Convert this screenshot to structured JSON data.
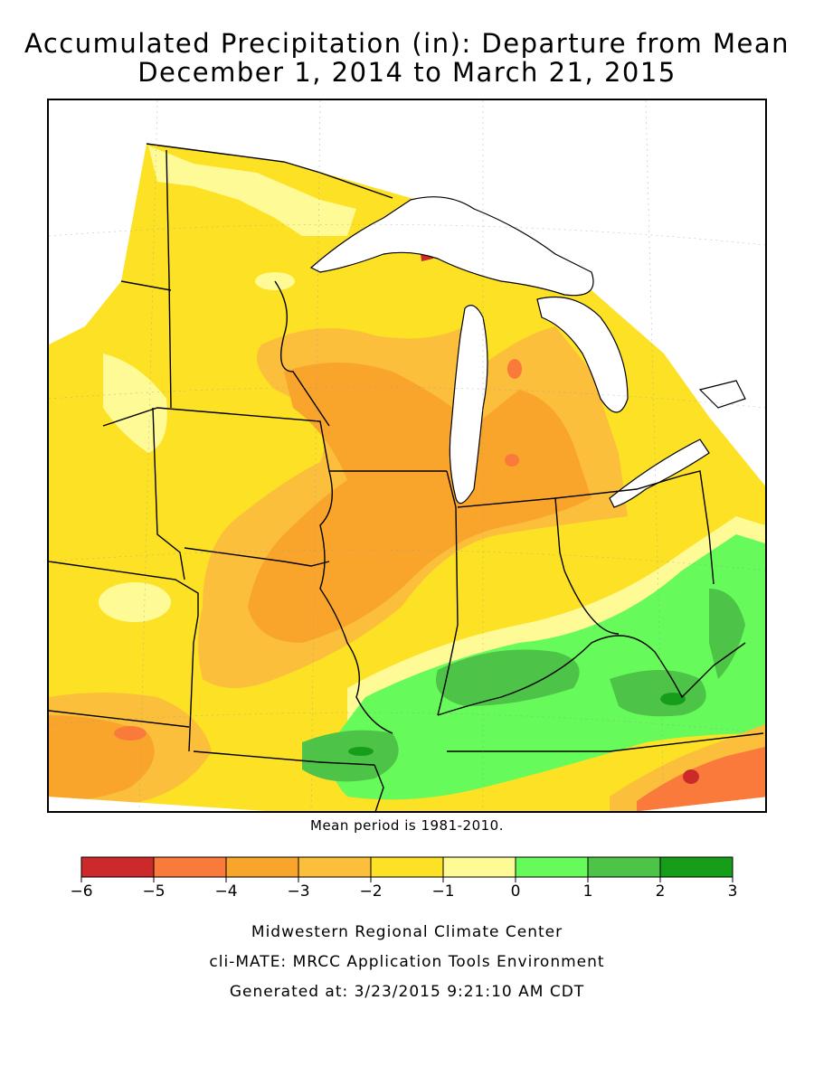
{
  "title_line1": "Accumulated Precipitation (in): Departure from Mean",
  "title_line2": "December 1, 2014 to March 21, 2015",
  "mean_period_note": "Mean period is 1981-2010.",
  "legend": {
    "ticks": [
      "−6",
      "−5",
      "−4",
      "−3",
      "−2",
      "−1",
      "0",
      "1",
      "2",
      "3"
    ],
    "bins": [
      {
        "from": -6,
        "to": -5,
        "color": "#cc2a2a"
      },
      {
        "from": -5,
        "to": -4,
        "color": "#fa7a3c"
      },
      {
        "from": -4,
        "to": -3,
        "color": "#f9a52c"
      },
      {
        "from": -3,
        "to": -2,
        "color": "#fbbf3c"
      },
      {
        "from": -2,
        "to": -1,
        "color": "#fde125"
      },
      {
        "from": -1,
        "to": 0,
        "color": "#fefa96"
      },
      {
        "from": 0,
        "to": 1,
        "color": "#66fa5a"
      },
      {
        "from": 1,
        "to": 2,
        "color": "#4dc347"
      },
      {
        "from": 2,
        "to": 3,
        "color": "#169e1a"
      }
    ]
  },
  "footer_line1": "Midwestern Regional Climate Center",
  "footer_line2": "cli-MATE: MRCC Application Tools Environment",
  "footer_line3": "Generated at: 3/23/2015 9:21:10 AM CDT"
}
